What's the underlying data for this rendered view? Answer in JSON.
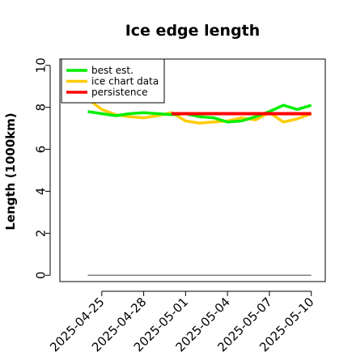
{
  "chart_data": {
    "type": "line",
    "title": "Ice edge length",
    "ylabel": "Length (1000km)",
    "xlabel": "",
    "ylim": [
      -0.3,
      10.3
    ],
    "yticks": [
      0,
      2,
      4,
      6,
      8,
      10
    ],
    "xlim": [
      "2025-04-22",
      "2025-05-11"
    ],
    "xticks": [
      "2025-04-25",
      "2025-04-28",
      "2025-05-01",
      "2025-05-04",
      "2025-05-07",
      "2025-05-10"
    ],
    "grid": false,
    "legend_position": "top-left",
    "series": [
      {
        "name": "best est.",
        "color": "#00ee00",
        "x": [
          "2025-04-24",
          "2025-04-25",
          "2025-04-26",
          "2025-04-27",
          "2025-04-28",
          "2025-04-29",
          "2025-04-30",
          "2025-05-01",
          "2025-05-02",
          "2025-05-03",
          "2025-05-04",
          "2025-05-05",
          "2025-05-06",
          "2025-05-07",
          "2025-05-08",
          "2025-05-09",
          "2025-05-10"
        ],
        "y": [
          7.8,
          7.7,
          7.6,
          7.7,
          7.75,
          7.7,
          7.65,
          7.7,
          7.55,
          7.5,
          7.3,
          7.35,
          7.55,
          7.8,
          8.1,
          7.9,
          8.1
        ]
      },
      {
        "name": "ice chart data",
        "color": "#ffcc00",
        "x": [
          "2025-04-24",
          "2025-04-25",
          "2025-04-26",
          "2025-04-27",
          "2025-04-28",
          "2025-04-29",
          "2025-04-30",
          "2025-05-01",
          "2025-05-02",
          "2025-05-03",
          "2025-05-04",
          "2025-05-05",
          "2025-05-06",
          "2025-05-07",
          "2025-05-08",
          "2025-05-09",
          "2025-05-10"
        ],
        "y": [
          8.4,
          7.9,
          7.65,
          7.55,
          7.5,
          7.6,
          7.75,
          7.35,
          7.25,
          7.3,
          7.35,
          7.5,
          7.4,
          7.75,
          7.3,
          7.45,
          7.7
        ]
      },
      {
        "name": "persistence",
        "color": "#ff0000",
        "x": [
          "2025-04-30",
          "2025-05-10"
        ],
        "y": [
          7.7,
          7.7
        ]
      },
      {
        "name": "",
        "color": "#808080",
        "x": [
          "2025-04-24",
          "2025-05-10"
        ],
        "y": [
          0,
          0
        ]
      }
    ]
  }
}
